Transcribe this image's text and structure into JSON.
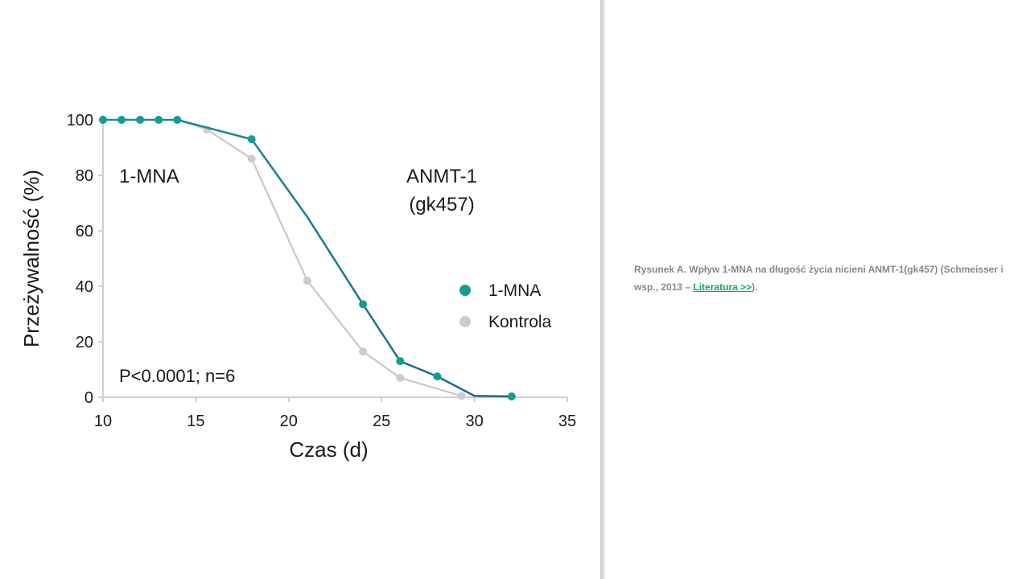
{
  "chart_data": {
    "type": "line",
    "xlabel": "Czas (d)",
    "ylabel": "Przeżywalność (%)",
    "xlim": [
      10,
      35
    ],
    "ylim": [
      0,
      100
    ],
    "xticks": [
      10,
      15,
      20,
      25,
      30,
      35
    ],
    "yticks": [
      0,
      20,
      40,
      60,
      80,
      100
    ],
    "grid": false,
    "legend_position": "right",
    "annotations": {
      "top_left": "1-MNA",
      "top_right_line1": "ANMT-1",
      "top_right_line2": "(gk457)",
      "bottom_left": "P<0.0001; n=6"
    },
    "series": [
      {
        "name": "Kontrola",
        "color": "#c8c8c8",
        "marker_color": "#cccccc",
        "x": [
          10,
          11,
          12,
          13,
          14,
          15.6,
          18,
          21,
          24,
          26,
          29.3
        ],
        "y": [
          100,
          100,
          100,
          100,
          100,
          96.5,
          86,
          42,
          16.5,
          7,
          0.5
        ],
        "markers": [
          false,
          false,
          false,
          false,
          false,
          true,
          true,
          true,
          true,
          true,
          true
        ]
      },
      {
        "name": "1-MNA",
        "color_start": "#139a92",
        "color_end": "#1e5f9e",
        "marker_color": "#169b93",
        "x": [
          10,
          11,
          12,
          13,
          14,
          18,
          21,
          24,
          26,
          28,
          30,
          32
        ],
        "y": [
          100,
          100,
          100,
          100,
          100,
          93,
          65,
          33.5,
          13,
          7.5,
          0.5,
          0.3
        ],
        "markers": [
          true,
          true,
          true,
          true,
          true,
          true,
          false,
          true,
          true,
          true,
          false,
          true
        ]
      }
    ],
    "legend": [
      {
        "label": "1-MNA",
        "color": "#169b93"
      },
      {
        "label": "Kontrola",
        "color": "#cccccc"
      }
    ]
  },
  "caption": {
    "text": "Rysunek A. Wpływ 1-MNA na długość życia nicieni ANMT-1(gk457)  (Schmeisser i wsp., 2013 – ",
    "link": "Literatura  >>",
    "end": ")."
  }
}
